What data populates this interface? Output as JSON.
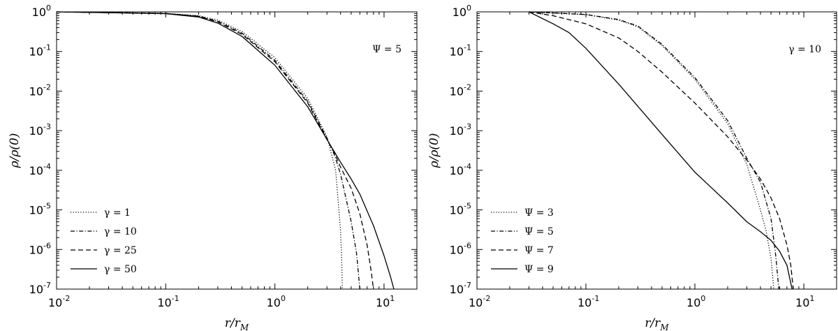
{
  "chart_data": [
    {
      "type": "line",
      "xlabel": "r/r_M",
      "ylabel": "ρ/ρ(0)",
      "xscale": "log",
      "yscale": "log",
      "xlim": [
        0.01,
        20
      ],
      "ylim": [
        1e-07,
        1
      ],
      "x_ticks": [
        {
          "base": "10",
          "exp": "-2"
        },
        {
          "base": "10",
          "exp": "-1"
        },
        {
          "base": "10",
          "exp": "0"
        },
        {
          "base": "10",
          "exp": "1"
        }
      ],
      "y_ticks": [
        {
          "base": "10",
          "exp": "0"
        },
        {
          "base": "10",
          "exp": "-1"
        },
        {
          "base": "10",
          "exp": "-2"
        },
        {
          "base": "10",
          "exp": "-3"
        },
        {
          "base": "10",
          "exp": "-4"
        },
        {
          "base": "10",
          "exp": "-5"
        },
        {
          "base": "10",
          "exp": "-6"
        },
        {
          "base": "10",
          "exp": "-7"
        }
      ],
      "annotation": "Ψ = 5",
      "legend_position": "lower-left",
      "grid": false,
      "series": [
        {
          "name": "γ = 1",
          "style": "dotted",
          "x": [
            0.01,
            0.1,
            0.2,
            0.3,
            0.5,
            1.0,
            2.0,
            3.0,
            3.6,
            4.0,
            4.1,
            4.15
          ],
          "y": [
            1.0,
            0.92,
            0.8,
            0.62,
            0.32,
            0.07,
            0.0065,
            0.0007,
            0.0001,
            3e-06,
            5e-07,
            1e-07
          ]
        },
        {
          "name": "γ = 10",
          "style": "dashdot",
          "x": [
            0.01,
            0.1,
            0.2,
            0.3,
            0.5,
            1.0,
            2.0,
            3.0,
            3.5,
            4.0,
            5.0,
            5.6,
            6.0
          ],
          "y": [
            1.0,
            0.91,
            0.78,
            0.58,
            0.29,
            0.06,
            0.0055,
            0.00065,
            0.00025,
            8e-05,
            5e-06,
            8e-07,
            1e-07
          ]
        },
        {
          "name": "γ = 25",
          "style": "dashed",
          "x": [
            0.01,
            0.1,
            0.2,
            0.3,
            0.5,
            1.0,
            2.0,
            3.0,
            3.5,
            4.0,
            5.0,
            6.0,
            7.0,
            7.6,
            8.0
          ],
          "y": [
            1.0,
            0.91,
            0.77,
            0.56,
            0.27,
            0.055,
            0.005,
            0.0006,
            0.00028,
            0.00012,
            3.5e-05,
            8e-06,
            1.3e-06,
            3e-07,
            1e-07
          ]
        },
        {
          "name": "γ = 50",
          "style": "solid",
          "x": [
            0.01,
            0.1,
            0.2,
            0.3,
            0.5,
            1.0,
            2.0,
            3.0,
            4.0,
            5.0,
            6.0,
            8.0,
            10.0,
            11.5,
            12.3
          ],
          "y": [
            1.0,
            0.9,
            0.74,
            0.52,
            0.24,
            0.045,
            0.004,
            0.0006,
            0.00016,
            6e-05,
            2.5e-05,
            4e-06,
            7e-07,
            2e-07,
            1e-07
          ]
        }
      ]
    },
    {
      "type": "line",
      "xlabel": "r/r_M",
      "ylabel": "ρ/ρ(0)",
      "xscale": "log",
      "yscale": "log",
      "xlim": [
        0.01,
        20
      ],
      "ylim": [
        1e-07,
        1
      ],
      "x_ticks": [
        {
          "base": "10",
          "exp": "-2"
        },
        {
          "base": "10",
          "exp": "-1"
        },
        {
          "base": "10",
          "exp": "0"
        },
        {
          "base": "10",
          "exp": "1"
        }
      ],
      "y_ticks": [
        {
          "base": "10",
          "exp": "0"
        },
        {
          "base": "10",
          "exp": "-1"
        },
        {
          "base": "10",
          "exp": "-2"
        },
        {
          "base": "10",
          "exp": "-3"
        },
        {
          "base": "10",
          "exp": "-4"
        },
        {
          "base": "10",
          "exp": "-5"
        },
        {
          "base": "10",
          "exp": "-6"
        },
        {
          "base": "10",
          "exp": "-7"
        }
      ],
      "annotation": "γ = 10",
      "legend_position": "lower-left",
      "grid": false,
      "series": [
        {
          "name": "Ψ = 3",
          "style": "dotted",
          "x": [
            0.03,
            0.1,
            0.2,
            0.3,
            0.5,
            1.0,
            2.0,
            3.0,
            4.0,
            4.5,
            5.0,
            5.3
          ],
          "y": [
            1.0,
            0.85,
            0.62,
            0.42,
            0.14,
            0.02,
            0.0015,
            0.00014,
            1e-05,
            3e-06,
            6e-07,
            1e-07
          ]
        },
        {
          "name": "Ψ = 5",
          "style": "dashdot",
          "x": [
            0.03,
            0.1,
            0.2,
            0.3,
            0.5,
            1.0,
            2.0,
            3.0,
            4.0,
            5.0,
            5.5,
            5.9
          ],
          "y": [
            1.0,
            0.86,
            0.64,
            0.44,
            0.15,
            0.022,
            0.0018,
            0.0002,
            5e-05,
            6e-06,
            8e-07,
            1e-07
          ]
        },
        {
          "name": "Ψ = 7",
          "style": "dashed",
          "x": [
            0.03,
            0.05,
            0.1,
            0.2,
            0.3,
            0.5,
            1.0,
            2.0,
            3.0,
            4.0,
            5.0,
            6.0,
            7.0,
            7.6,
            8.0
          ],
          "y": [
            1.0,
            0.8,
            0.5,
            0.22,
            0.1,
            0.03,
            0.005,
            0.0007,
            0.00018,
            6e-05,
            2e-05,
            6e-06,
            1.3e-06,
            4e-07,
            1e-07
          ]
        },
        {
          "name": "Ψ = 9",
          "style": "solid",
          "x": [
            0.03,
            0.05,
            0.07,
            0.1,
            0.2,
            0.5,
            1.0,
            2.0,
            3.0,
            4.0,
            5.0,
            6.0,
            7.0,
            7.8
          ],
          "y": [
            1.0,
            0.5,
            0.3,
            0.12,
            0.015,
            0.0008,
            9e-05,
            1.5e-05,
            5e-06,
            2.8e-06,
            1.7e-06,
            9e-07,
            4e-07,
            1e-07
          ]
        }
      ]
    }
  ]
}
